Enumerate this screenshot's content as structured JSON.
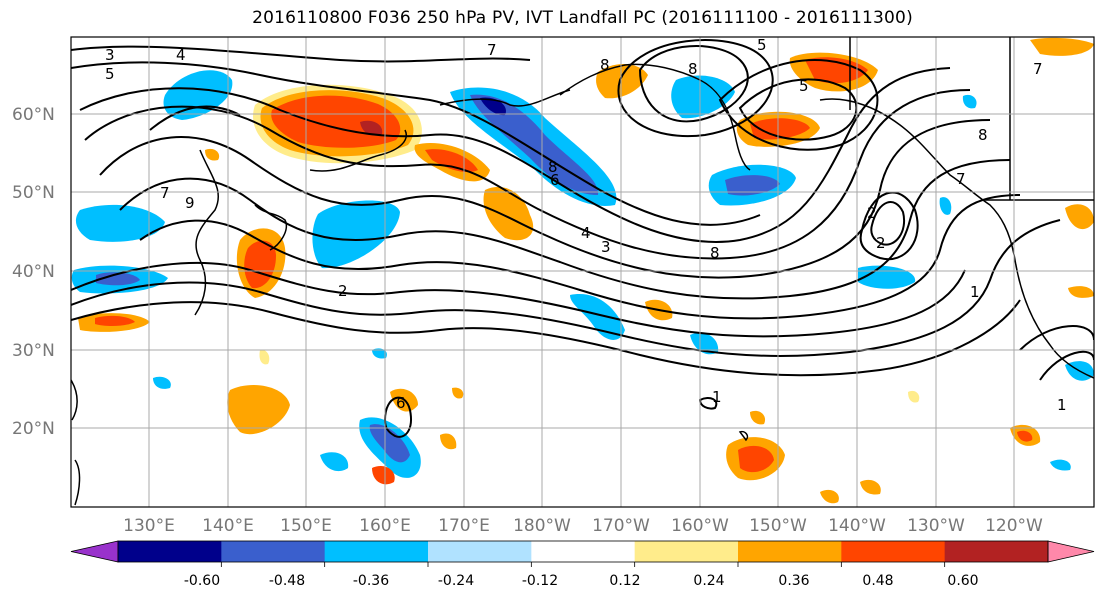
{
  "title": "2016110800 F036 250 hPa PV, IVT Landfall PC (2016111100 - 2016111300)",
  "lat_labels": [
    "60°N",
    "50°N",
    "40°N",
    "30°N",
    "20°N"
  ],
  "lon_labels": [
    "130°E",
    "140°E",
    "150°E",
    "160°E",
    "170°E",
    "180°W",
    "170°W",
    "160°W",
    "150°W",
    "140°W",
    "130°W",
    "120°W"
  ],
  "colorbar": {
    "colors": [
      "#9932cc",
      "#00008b",
      "#3a5fcd",
      "#00bfff",
      "#b0e2ff",
      "#ffffff",
      "#ffec8b",
      "#ffa500",
      "#ff4500",
      "#b22222",
      "#ff88aa"
    ],
    "tick_labels": [
      "-0.60",
      "-0.48",
      "-0.36",
      "-0.24",
      "-0.12",
      "0.12",
      "0.24",
      "0.36",
      "0.48",
      "0.60"
    ]
  },
  "contour_labels": [
    "3",
    "4",
    "5",
    "7",
    "8",
    "8",
    "5",
    "5",
    "7",
    "8",
    "7",
    "9",
    "6",
    "8",
    "2",
    "4",
    "3",
    "8",
    "2",
    "2",
    "7",
    "1",
    "1",
    "6",
    "1"
  ],
  "style": {
    "contour_color": "#000000",
    "grid_color": "#a9a9a9",
    "coast_color": "#000000"
  }
}
